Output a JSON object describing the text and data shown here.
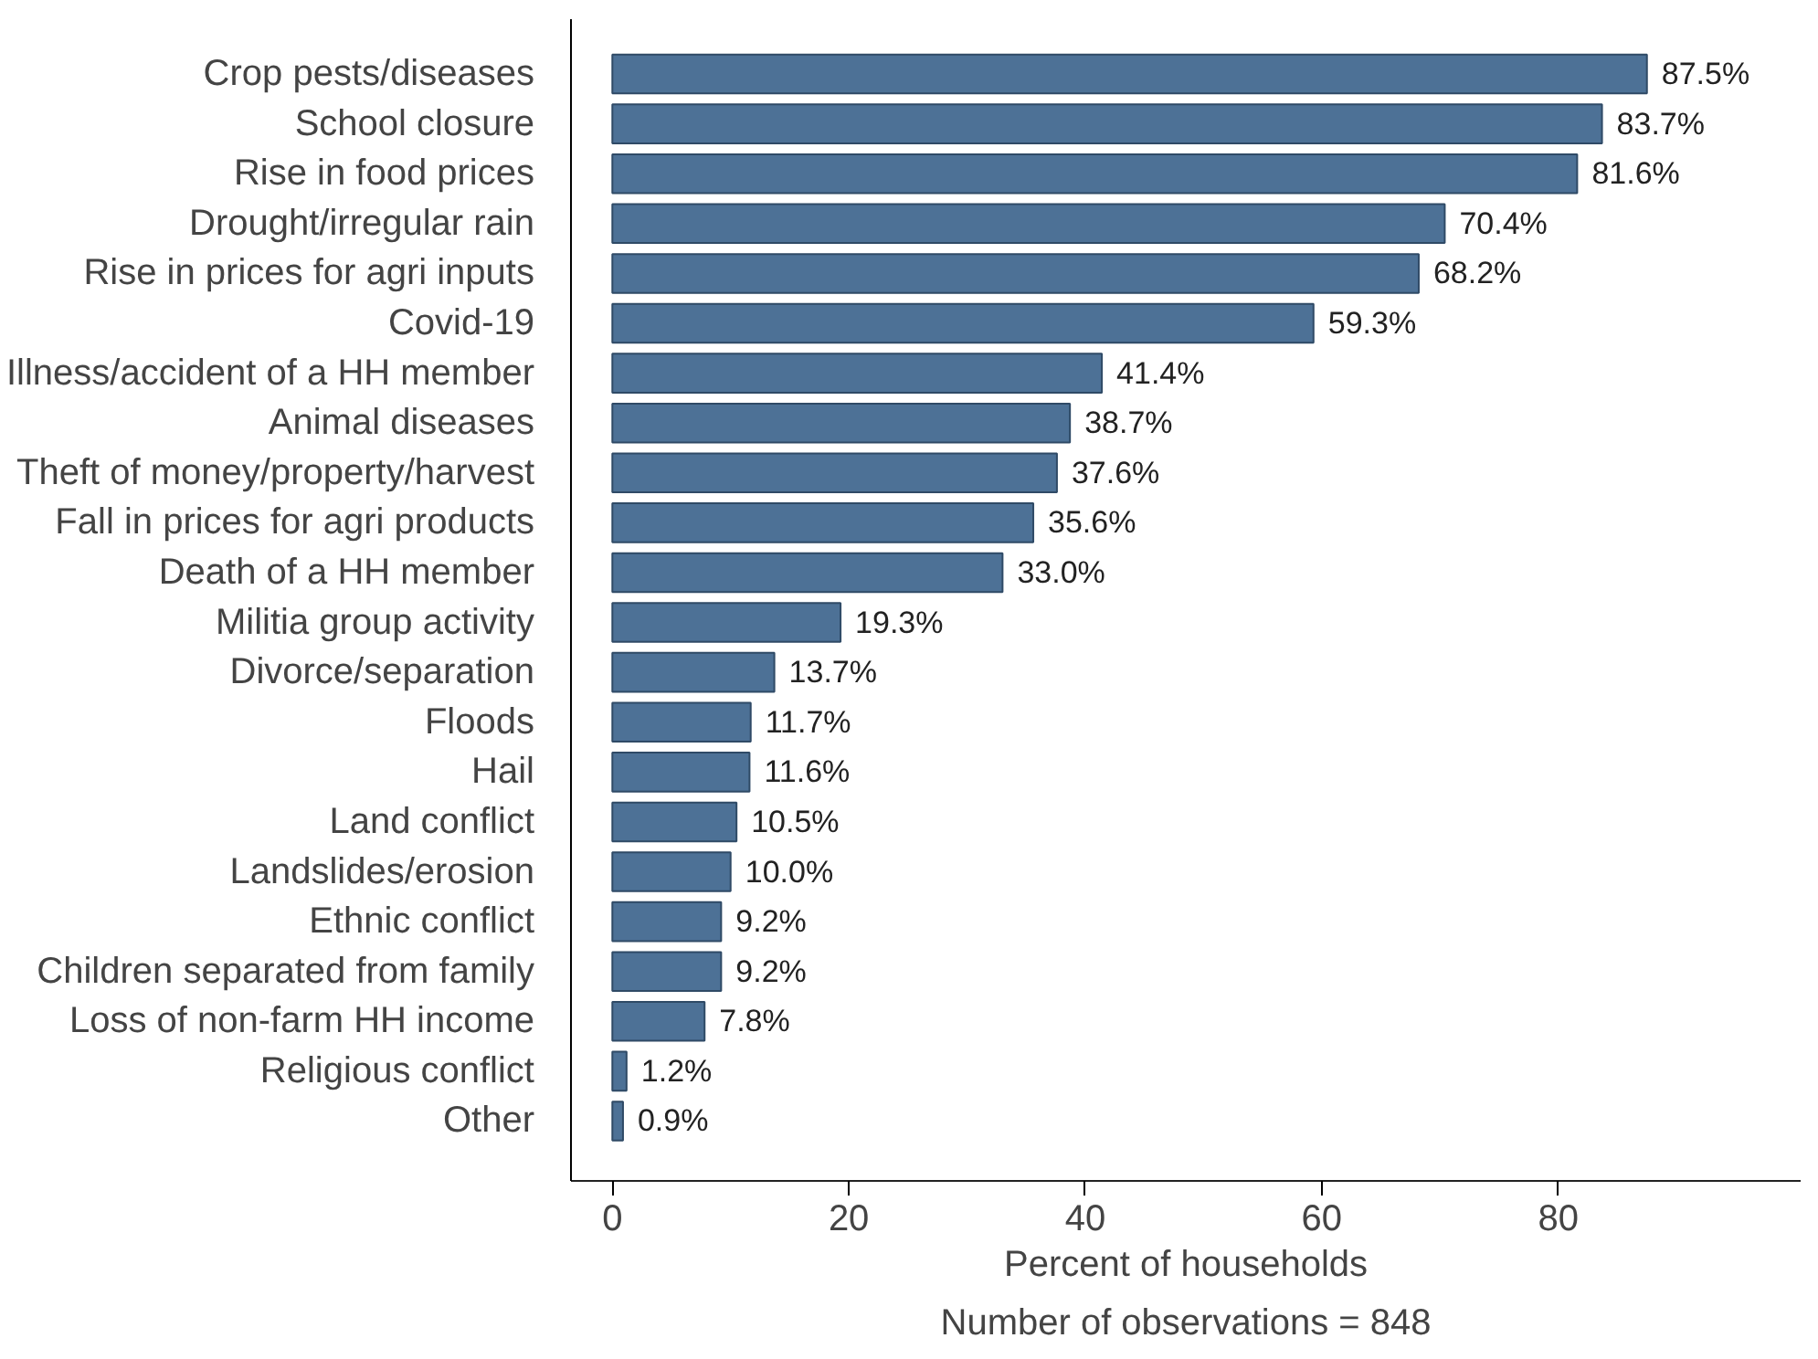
{
  "chart_data": {
    "type": "bar",
    "orientation": "horizontal",
    "xlabel": "Percent of households",
    "categories": [
      "Crop pests/diseases",
      "School closure",
      "Rise in food prices",
      "Drought/irregular rain",
      "Rise in prices for agri inputs",
      "Covid-19",
      "Illness/accident of a HH member",
      "Animal diseases",
      "Theft of money/property/harvest",
      "Fall in prices for agri products",
      "Death of a HH member",
      "Militia group activity",
      "Divorce/separation",
      "Floods",
      "Hail",
      "Land conflict",
      "Landslides/erosion",
      "Ethnic conflict",
      "Children separated from family",
      "Loss of non-farm HH income",
      "Religious conflict",
      "Other"
    ],
    "values": [
      87.5,
      83.7,
      81.6,
      70.4,
      68.2,
      59.3,
      41.4,
      38.7,
      37.6,
      35.6,
      33.0,
      19.3,
      13.7,
      11.7,
      11.6,
      10.5,
      10.0,
      9.2,
      9.2,
      7.8,
      1.2,
      0.9
    ],
    "value_labels": [
      "87.5%",
      "83.7%",
      "81.6%",
      "70.4%",
      "68.2%",
      "59.3%",
      "41.4%",
      "38.7%",
      "37.6%",
      "35.6%",
      "33.0%",
      "19.3%",
      "13.7%",
      "11.7%",
      "11.6%",
      "10.5%",
      "10.0%",
      "9.2%",
      "9.2%",
      "7.8%",
      "1.2%",
      "0.9%"
    ],
    "color": "#4d7196",
    "xlim": [
      -3.5,
      100.5
    ],
    "xticks": [
      0,
      20,
      40,
      60,
      80
    ],
    "grid": false,
    "annotations": [
      "Number of observations = 848"
    ]
  }
}
